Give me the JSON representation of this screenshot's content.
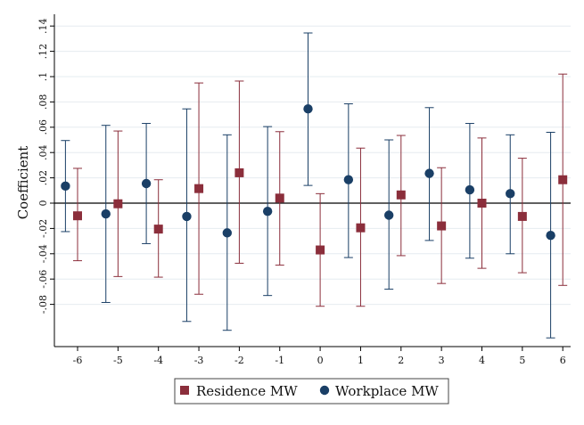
{
  "chart_data": {
    "type": "scatter",
    "title": "",
    "xlabel": "",
    "ylabel": "Coefficient",
    "x_ticks": [
      "-6",
      "-5",
      "-4",
      "-3",
      "-2",
      "-1",
      "0",
      "1",
      "2",
      "3",
      "4",
      "5",
      "6"
    ],
    "y_ticks": [
      {
        "value": -0.08,
        "label": "-.08"
      },
      {
        "value": -0.06,
        "label": "-.06"
      },
      {
        "value": -0.04,
        "label": "-.04"
      },
      {
        "value": -0.02,
        "label": "-.02"
      },
      {
        "value": 0,
        "label": "0"
      },
      {
        "value": 0.02,
        "label": ".02"
      },
      {
        "value": 0.04,
        "label": ".04"
      },
      {
        "value": 0.06,
        "label": ".06"
      },
      {
        "value": 0.08,
        "label": ".08"
      },
      {
        "value": 0.1,
        "label": ".1"
      },
      {
        "value": 0.12,
        "label": ".12"
      },
      {
        "value": 0.14,
        "label": ".14"
      }
    ],
    "xlim": [
      -6.75,
      6.15
    ],
    "ylim": [
      -0.095,
      0.15
    ],
    "grid": true,
    "legend_position": "bottom",
    "series": [
      {
        "name": "Residence MW",
        "color": "#8b2e3b",
        "marker": "square",
        "x": [
          -6,
          -5,
          -4,
          -3,
          -2,
          -1,
          0,
          1,
          2,
          3,
          4,
          5,
          6
        ],
        "estimate": [
          -0.01,
          -0.0005,
          -0.0205,
          0.0115,
          0.024,
          0.004,
          -0.037,
          -0.0195,
          0.0065,
          -0.018,
          0.0,
          -0.0105,
          0.0185
        ],
        "ci_low": [
          -0.0455,
          -0.058,
          -0.0585,
          -0.072,
          -0.0475,
          -0.049,
          -0.0815,
          -0.0815,
          -0.0415,
          -0.0635,
          -0.0515,
          -0.055,
          -0.065
        ],
        "ci_high": [
          0.0275,
          0.057,
          0.0185,
          0.095,
          0.0965,
          0.0565,
          0.0075,
          0.0435,
          0.0535,
          0.028,
          0.0515,
          0.0355,
          0.102
        ]
      },
      {
        "name": "Workplace MW",
        "color": "#1a3f66",
        "marker": "circle",
        "x": [
          -6.3,
          -5.3,
          -4.3,
          -3.3,
          -2.3,
          -1.3,
          -0.3,
          0.7,
          1.7,
          2.7,
          3.7,
          4.7,
          5.7
        ],
        "estimate": [
          0.0135,
          -0.0085,
          0.0155,
          -0.0105,
          -0.0235,
          -0.0065,
          0.0745,
          0.0185,
          -0.0095,
          0.0235,
          0.0105,
          0.0075,
          -0.0255
        ],
        "ci_low": [
          -0.0225,
          -0.0785,
          -0.032,
          -0.0935,
          -0.1005,
          -0.073,
          0.014,
          -0.043,
          -0.068,
          -0.0295,
          -0.0435,
          -0.04,
          -0.1065
        ],
        "ci_high": [
          0.0495,
          0.0615,
          0.063,
          0.0745,
          0.054,
          0.0605,
          0.1345,
          0.0785,
          0.05,
          0.0755,
          0.063,
          0.054,
          0.056
        ]
      }
    ]
  }
}
